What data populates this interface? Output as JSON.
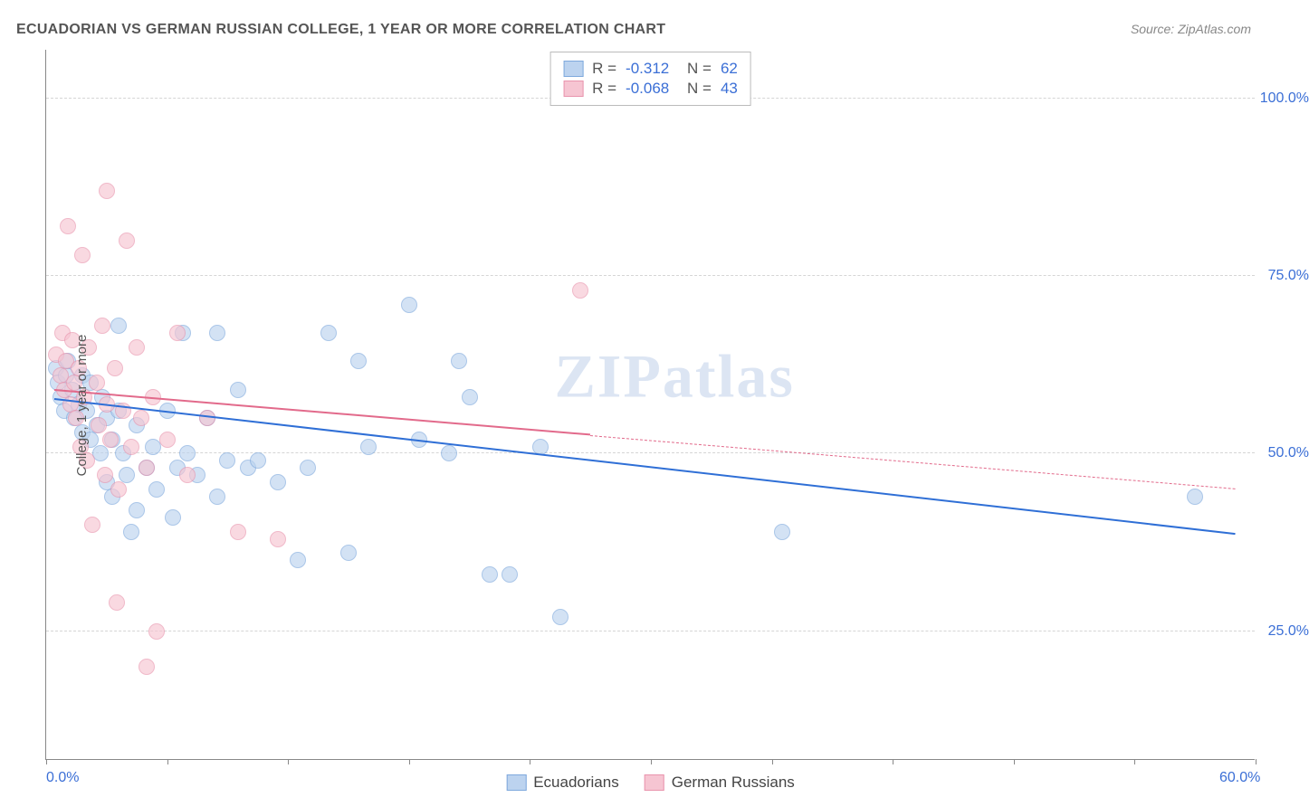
{
  "title": "ECUADORIAN VS GERMAN RUSSIAN COLLEGE, 1 YEAR OR MORE CORRELATION CHART",
  "source": "Source: ZipAtlas.com",
  "ylabel": "College, 1 year or more",
  "watermark": "ZIPatlas",
  "chart": {
    "type": "scatter",
    "xlim": [
      0,
      60
    ],
    "ylim": [
      7,
      107
    ],
    "x_ticks": [
      0,
      6,
      12,
      18,
      24,
      30,
      36,
      42,
      48,
      54,
      60
    ],
    "x_tick_labels": {
      "0": "0.0%",
      "60": "60.0%"
    },
    "y_gridlines": [
      25,
      50,
      75,
      100
    ],
    "y_tick_labels": {
      "25": "25.0%",
      "50": "50.0%",
      "75": "75.0%",
      "100": "100.0%"
    },
    "background_color": "#ffffff",
    "grid_color": "#d5d5d5",
    "axis_color": "#888888",
    "tick_label_color": "#3b6fd6",
    "label_color": "#555555",
    "title_color": "#555555",
    "point_radius": 9,
    "series": [
      {
        "key": "ecuadorians",
        "label": "Ecuadorians",
        "fill": "#bcd3ef",
        "stroke": "#7ea9dd",
        "fill_opacity": 0.65,
        "R": "-0.312",
        "N": "62",
        "trend": {
          "x1": 0.4,
          "y1": 57.5,
          "x2": 59,
          "y2": 38.5,
          "color": "#2f6fd6",
          "width": 2.2
        },
        "points": [
          [
            0.5,
            62
          ],
          [
            0.6,
            60
          ],
          [
            0.7,
            58
          ],
          [
            0.9,
            56
          ],
          [
            1.0,
            61
          ],
          [
            1.1,
            63
          ],
          [
            1.3,
            59
          ],
          [
            1.4,
            55
          ],
          [
            1.6,
            57
          ],
          [
            1.8,
            53
          ],
          [
            1.8,
            61
          ],
          [
            2.0,
            56
          ],
          [
            2.2,
            52
          ],
          [
            2.2,
            60
          ],
          [
            2.5,
            54
          ],
          [
            2.7,
            50
          ],
          [
            2.8,
            58
          ],
          [
            3.0,
            55
          ],
          [
            3.0,
            46
          ],
          [
            3.3,
            52
          ],
          [
            3.3,
            44
          ],
          [
            3.6,
            68
          ],
          [
            3.6,
            56
          ],
          [
            3.8,
            50
          ],
          [
            4.0,
            47
          ],
          [
            4.2,
            39
          ],
          [
            4.5,
            54
          ],
          [
            4.5,
            42
          ],
          [
            5.0,
            48
          ],
          [
            5.3,
            51
          ],
          [
            5.5,
            45
          ],
          [
            6.0,
            56
          ],
          [
            6.3,
            41
          ],
          [
            6.5,
            48
          ],
          [
            6.8,
            67
          ],
          [
            7.0,
            50
          ],
          [
            7.5,
            47
          ],
          [
            8.0,
            55
          ],
          [
            8.5,
            44
          ],
          [
            9.0,
            49
          ],
          [
            9.5,
            59
          ],
          [
            10.0,
            48
          ],
          [
            10.5,
            49
          ],
          [
            11.5,
            46
          ],
          [
            12.5,
            35
          ],
          [
            13.0,
            48
          ],
          [
            14.0,
            67
          ],
          [
            15.0,
            36
          ],
          [
            15.5,
            63
          ],
          [
            16.0,
            51
          ],
          [
            18.0,
            71
          ],
          [
            18.5,
            52
          ],
          [
            20.0,
            50
          ],
          [
            20.5,
            63
          ],
          [
            21.0,
            58
          ],
          [
            22.0,
            33
          ],
          [
            23.0,
            33
          ],
          [
            24.5,
            51
          ],
          [
            25.5,
            27
          ],
          [
            36.5,
            39
          ],
          [
            57.0,
            44
          ],
          [
            8.5,
            67
          ]
        ]
      },
      {
        "key": "german_russians",
        "label": "German Russians",
        "fill": "#f6c5d2",
        "stroke": "#e994ad",
        "fill_opacity": 0.65,
        "R": "-0.068",
        "N": "43",
        "trend": {
          "x1": 0.4,
          "y1": 58.8,
          "x2": 27,
          "y2": 52.5,
          "color": "#e26a8b",
          "width": 2.0,
          "dash_from_x": 27,
          "dash_to": {
            "x": 59,
            "y": 45
          }
        },
        "points": [
          [
            0.5,
            64
          ],
          [
            0.7,
            61
          ],
          [
            0.8,
            67
          ],
          [
            0.9,
            59
          ],
          [
            1.0,
            63
          ],
          [
            1.1,
            82
          ],
          [
            1.2,
            57
          ],
          [
            1.3,
            66
          ],
          [
            1.4,
            60
          ],
          [
            1.5,
            55
          ],
          [
            1.6,
            62
          ],
          [
            1.7,
            51
          ],
          [
            1.8,
            78
          ],
          [
            1.9,
            58
          ],
          [
            2.0,
            49
          ],
          [
            2.1,
            65
          ],
          [
            2.3,
            40
          ],
          [
            2.5,
            60
          ],
          [
            2.6,
            54
          ],
          [
            2.8,
            68
          ],
          [
            2.9,
            47
          ],
          [
            3.0,
            57
          ],
          [
            3.0,
            87
          ],
          [
            3.2,
            52
          ],
          [
            3.4,
            62
          ],
          [
            3.5,
            29
          ],
          [
            3.6,
            45
          ],
          [
            3.8,
            56
          ],
          [
            4.0,
            80
          ],
          [
            4.2,
            51
          ],
          [
            4.5,
            65
          ],
          [
            4.7,
            55
          ],
          [
            5.0,
            48
          ],
          [
            5.0,
            20
          ],
          [
            5.3,
            58
          ],
          [
            5.5,
            25
          ],
          [
            6.0,
            52
          ],
          [
            6.5,
            67
          ],
          [
            7.0,
            47
          ],
          [
            8.0,
            55
          ],
          [
            9.5,
            39
          ],
          [
            11.5,
            38
          ],
          [
            26.5,
            73
          ]
        ]
      }
    ],
    "legend_top": [
      {
        "swatch_fill": "#bcd3ef",
        "swatch_stroke": "#7ea9dd",
        "r_label": "R =",
        "r_val": "-0.312",
        "n_label": "N =",
        "n_val": "62"
      },
      {
        "swatch_fill": "#f6c5d2",
        "swatch_stroke": "#e994ad",
        "r_label": "R =",
        "r_val": "-0.068",
        "n_label": "N =",
        "n_val": "43"
      }
    ],
    "legend_bottom": [
      {
        "swatch_fill": "#bcd3ef",
        "swatch_stroke": "#7ea9dd",
        "label": "Ecuadorians"
      },
      {
        "swatch_fill": "#f6c5d2",
        "swatch_stroke": "#e994ad",
        "label": "German Russians"
      }
    ]
  }
}
